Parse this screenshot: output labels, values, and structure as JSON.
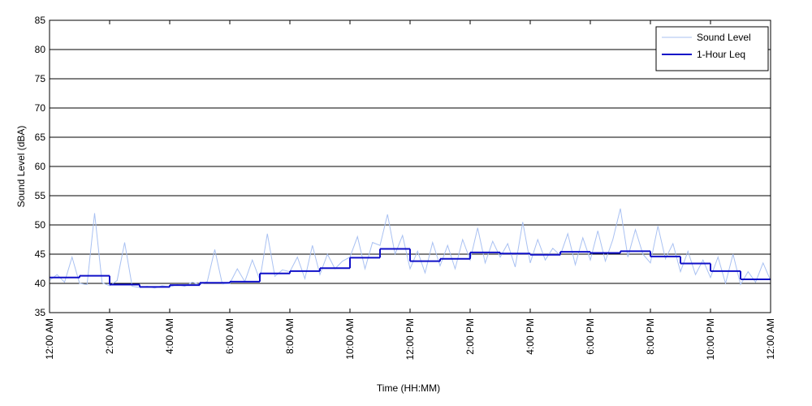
{
  "chart_data": {
    "type": "line",
    "x_label": "Time (HH:MM)",
    "y_label": "Sound Level (dBA)",
    "xlim": [
      0,
      24
    ],
    "ylim": [
      35,
      85
    ],
    "yticks": [
      35,
      40,
      45,
      50,
      55,
      60,
      65,
      70,
      75,
      80,
      85
    ],
    "xticks": [
      {
        "value": 0,
        "label": "12:00 AM"
      },
      {
        "value": 2,
        "label": "2:00 AM"
      },
      {
        "value": 4,
        "label": "4:00 AM"
      },
      {
        "value": 6,
        "label": "6:00 AM"
      },
      {
        "value": 8,
        "label": "8:00 AM"
      },
      {
        "value": 10,
        "label": "10:00 AM"
      },
      {
        "value": 12,
        "label": "12:00 PM"
      },
      {
        "value": 14,
        "label": "2:00 PM"
      },
      {
        "value": 16,
        "label": "4:00 PM"
      },
      {
        "value": 18,
        "label": "6:00 PM"
      },
      {
        "value": 20,
        "label": "8:00 PM"
      },
      {
        "value": 22,
        "label": "10:00 PM"
      },
      {
        "value": 24,
        "label": "12:00 AM"
      }
    ],
    "grid": true,
    "legend": "upper right",
    "series": [
      {
        "name": "Sound Level",
        "color": "#a9c1f2",
        "step": false,
        "x": [
          0,
          0.25,
          0.5,
          0.75,
          1,
          1.25,
          1.5,
          1.75,
          2,
          2.25,
          2.5,
          2.75,
          3,
          3.25,
          3.5,
          3.75,
          4,
          4.25,
          4.5,
          4.75,
          5,
          5.25,
          5.5,
          5.75,
          6,
          6.25,
          6.5,
          6.75,
          7,
          7.25,
          7.5,
          7.75,
          8,
          8.25,
          8.5,
          8.75,
          9,
          9.25,
          9.5,
          9.75,
          10,
          10.25,
          10.5,
          10.75,
          11,
          11.25,
          11.5,
          11.75,
          12,
          12.25,
          12.5,
          12.75,
          13,
          13.25,
          13.5,
          13.75,
          14,
          14.25,
          14.5,
          14.75,
          15,
          15.25,
          15.5,
          15.75,
          16,
          16.25,
          16.5,
          16.75,
          17,
          17.25,
          17.5,
          17.75,
          18,
          18.25,
          18.5,
          18.75,
          19,
          19.25,
          19.5,
          19.75,
          20,
          20.25,
          20.5,
          20.75,
          21,
          21.25,
          21.5,
          21.75,
          22,
          22.25,
          22.5,
          22.75,
          23,
          23.25,
          23.5,
          23.75,
          24
        ],
        "values": [
          40.5,
          41.5,
          40.2,
          44.5,
          40.0,
          39.8,
          52.0,
          40.1,
          39.6,
          40.5,
          47.0,
          39.5,
          39.3,
          39.5,
          39.2,
          39.6,
          39.4,
          39.8,
          39.5,
          40.2,
          39.8,
          40.3,
          45.8,
          39.9,
          40.0,
          42.5,
          40.3,
          44.0,
          40.6,
          48.5,
          41.2,
          42.3,
          42.0,
          44.5,
          40.8,
          46.5,
          41.5,
          45.0,
          42.5,
          43.8,
          44.5,
          48.0,
          42.5,
          47.0,
          46.5,
          51.8,
          45.0,
          48.2,
          42.5,
          45.5,
          41.8,
          47.0,
          43.0,
          46.5,
          42.5,
          47.5,
          44.0,
          49.5,
          43.5,
          47.2,
          44.5,
          46.8,
          42.8,
          50.5,
          43.5,
          47.5,
          44.0,
          46.0,
          44.8,
          48.5,
          43.2,
          47.8,
          44.0,
          49.0,
          43.8,
          47.5,
          52.8,
          44.5,
          49.2,
          45.0,
          43.5,
          49.8,
          44.2,
          46.8,
          42.0,
          45.5,
          41.5,
          44.0,
          41.0,
          44.5,
          40.0,
          45.0,
          39.8,
          42.0,
          40.2,
          43.5,
          40.5
        ]
      },
      {
        "name": "1-Hour Leq",
        "color": "#1010c8",
        "step": true,
        "x": [
          0,
          1,
          2,
          3,
          4,
          5,
          6,
          7,
          8,
          9,
          10,
          11,
          12,
          13,
          14,
          15,
          16,
          17,
          18,
          19,
          20,
          21,
          22,
          23
        ],
        "values": [
          41.0,
          41.3,
          39.8,
          39.4,
          39.7,
          40.1,
          40.3,
          41.7,
          42.1,
          42.6,
          44.4,
          45.9,
          43.8,
          44.2,
          45.3,
          45.1,
          44.9,
          45.4,
          45.2,
          45.5,
          44.6,
          43.4,
          42.1,
          40.7
        ]
      }
    ]
  }
}
